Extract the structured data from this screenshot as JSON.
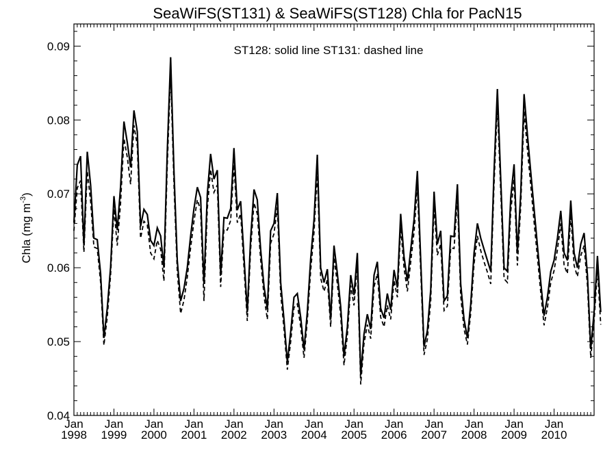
{
  "chart_data": {
    "type": "line",
    "title": "SeaWiFS(ST131) & SeaWiFS(ST128)  Chla for PacN15",
    "annotation": "ST128: solid line   ST131: dashed line",
    "ylabel_main": "Chla (mg m",
    "ylabel_sup": "-3",
    "ylabel_close": ")",
    "xlabel": "",
    "ylim": [
      0.04,
      0.093
    ],
    "xlim": [
      "1998-01",
      "2011-01"
    ],
    "x_tick_month": "Jan",
    "x_tick_years": [
      "1998",
      "1999",
      "2000",
      "2001",
      "2002",
      "2003",
      "2004",
      "2005",
      "2006",
      "2007",
      "2008",
      "2009",
      "2010"
    ],
    "y_ticks": [
      0.04,
      0.05,
      0.06,
      0.07,
      0.08,
      0.09
    ],
    "y_tick_labels": [
      "0.04",
      "0.05",
      "0.06",
      "0.07",
      "0.08",
      "0.09"
    ],
    "grid": false,
    "start_month": "1998-01",
    "series": [
      {
        "name": "ST128",
        "style": "solid",
        "color": "#000000",
        "values": [
          0.0661,
          0.0739,
          0.0751,
          0.063,
          0.0757,
          0.0712,
          0.064,
          0.0638,
          0.0592,
          0.0505,
          0.0545,
          0.0601,
          0.0697,
          0.0651,
          0.071,
          0.0798,
          0.077,
          0.0736,
          0.0813,
          0.0784,
          0.0656,
          0.0679,
          0.0672,
          0.0637,
          0.063,
          0.0654,
          0.0643,
          0.06,
          0.0758,
          0.0885,
          0.073,
          0.061,
          0.0555,
          0.0572,
          0.06,
          0.0643,
          0.068,
          0.0709,
          0.0695,
          0.0578,
          0.07,
          0.0754,
          0.072,
          0.0732,
          0.059,
          0.0668,
          0.0667,
          0.068,
          0.0762,
          0.0678,
          0.069,
          0.0615,
          0.054,
          0.064,
          0.0706,
          0.0692,
          0.0625,
          0.0575,
          0.0544,
          0.065,
          0.066,
          0.0701,
          0.058,
          0.053,
          0.0472,
          0.0513,
          0.056,
          0.0565,
          0.0533,
          0.0489,
          0.054,
          0.0612,
          0.0665,
          0.0753,
          0.06,
          0.058,
          0.0598,
          0.053,
          0.063,
          0.0592,
          0.0548,
          0.048,
          0.052,
          0.059,
          0.0563,
          0.062,
          0.0455,
          0.051,
          0.0537,
          0.0517,
          0.059,
          0.0608,
          0.0545,
          0.0532,
          0.0565,
          0.0543,
          0.0597,
          0.0573,
          0.0673,
          0.0615,
          0.0582,
          0.0625,
          0.0665,
          0.0731,
          0.061,
          0.0493,
          0.0515,
          0.057,
          0.0703,
          0.0632,
          0.065,
          0.0555,
          0.0562,
          0.0643,
          0.0642,
          0.0713,
          0.0578,
          0.053,
          0.0505,
          0.055,
          0.062,
          0.066,
          0.064,
          0.0625,
          0.061,
          0.0595,
          0.073,
          0.0842,
          0.072,
          0.06,
          0.0595,
          0.0695,
          0.074,
          0.062,
          0.07,
          0.0835,
          0.078,
          0.073,
          0.068,
          0.063,
          0.058,
          0.0535,
          0.056,
          0.0595,
          0.061,
          0.064,
          0.0677,
          0.062,
          0.061,
          0.0691,
          0.062,
          0.06,
          0.0632,
          0.0647,
          0.059,
          0.049,
          0.054,
          0.0616,
          0.054
        ]
      },
      {
        "name": "ST131",
        "style": "dashed",
        "color": "#000000",
        "values": [
          0.065,
          0.0708,
          0.0718,
          0.0621,
          0.0731,
          0.069,
          0.0628,
          0.0626,
          0.058,
          0.0495,
          0.0533,
          0.059,
          0.068,
          0.063,
          0.0688,
          0.0775,
          0.075,
          0.0713,
          0.0793,
          0.0765,
          0.064,
          0.0663,
          0.0658,
          0.062,
          0.0612,
          0.0637,
          0.0625,
          0.0582,
          0.0738,
          0.0865,
          0.0712,
          0.0595,
          0.0538,
          0.0556,
          0.0587,
          0.0627,
          0.0663,
          0.0692,
          0.0678,
          0.0555,
          0.068,
          0.0733,
          0.0702,
          0.0712,
          0.0574,
          0.0652,
          0.0651,
          0.0664,
          0.074,
          0.0661,
          0.0673,
          0.06,
          0.0528,
          0.0625,
          0.0688,
          0.0673,
          0.0611,
          0.0562,
          0.053,
          0.0633,
          0.0646,
          0.0682,
          0.0565,
          0.0517,
          0.0462,
          0.05,
          0.0546,
          0.0551,
          0.052,
          0.0478,
          0.0528,
          0.0596,
          0.0648,
          0.073,
          0.0586,
          0.0568,
          0.0584,
          0.052,
          0.0614,
          0.0578,
          0.0535,
          0.0468,
          0.0508,
          0.0576,
          0.0549,
          0.0603,
          0.0442,
          0.0497,
          0.0523,
          0.0504,
          0.0574,
          0.0592,
          0.0533,
          0.052,
          0.0549,
          0.053,
          0.0583,
          0.056,
          0.0655,
          0.06,
          0.0568,
          0.0608,
          0.0648,
          0.071,
          0.0595,
          0.0482,
          0.0503,
          0.0555,
          0.0683,
          0.0617,
          0.0632,
          0.0542,
          0.0548,
          0.0627,
          0.0626,
          0.0694,
          0.0562,
          0.0517,
          0.0496,
          0.0538,
          0.0605,
          0.0643,
          0.0623,
          0.0608,
          0.0594,
          0.0578,
          0.0712,
          0.082,
          0.0703,
          0.0585,
          0.058,
          0.0676,
          0.072,
          0.0603,
          0.0683,
          0.0812,
          0.076,
          0.0712,
          0.0662,
          0.0614,
          0.0566,
          0.0522,
          0.0546,
          0.058,
          0.0596,
          0.0624,
          0.066,
          0.0603,
          0.0592,
          0.0673,
          0.0603,
          0.0588,
          0.0616,
          0.063,
          0.0576,
          0.0478,
          0.0528,
          0.0598,
          0.0523
        ]
      }
    ]
  }
}
